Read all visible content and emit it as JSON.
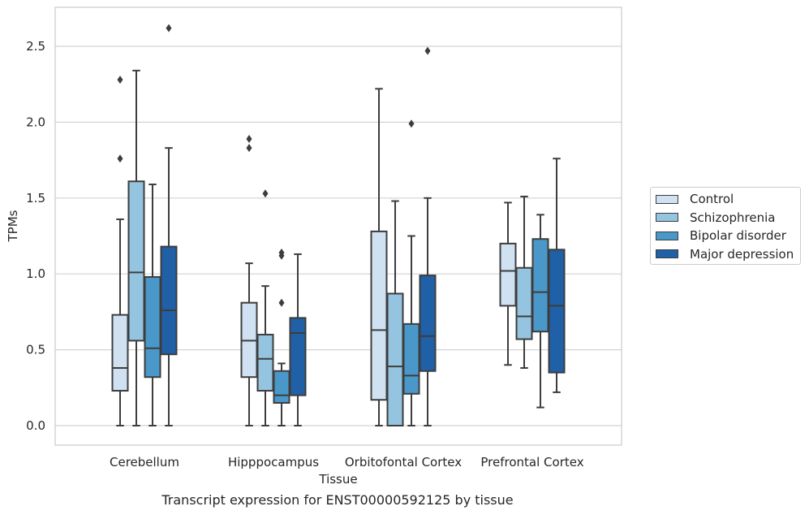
{
  "chart_data": {
    "type": "box",
    "xlabel": "Tissue",
    "ylabel": "TPMs",
    "ylim": [
      -0.13,
      2.75
    ],
    "yticks": [
      "0.0",
      "0.5",
      "1.0",
      "1.5",
      "2.0",
      "2.5"
    ],
    "yticks_values": [
      0,
      0.5,
      1.0,
      1.5,
      2.0,
      2.5
    ],
    "grid": "horizontal",
    "legend_position": "right",
    "categories": [
      "Cerebellum",
      "Hipppocampus",
      "Orbitofontal Cortex",
      "Prefrontal Cortex"
    ],
    "series": [
      {
        "name": "Control",
        "color": "#d0e1f2",
        "boxes": [
          {
            "whisker_low": 0.0,
            "q1": 0.23,
            "median": 0.38,
            "q3": 0.73,
            "whisker_high": 1.36,
            "outliers": [
              1.76,
              2.28
            ]
          },
          {
            "whisker_low": 0.0,
            "q1": 0.32,
            "median": 0.56,
            "q3": 0.81,
            "whisker_high": 1.07,
            "outliers": [
              1.83,
              1.89
            ]
          },
          {
            "whisker_low": 0.0,
            "q1": 0.17,
            "median": 0.63,
            "q3": 1.28,
            "whisker_high": 2.22,
            "outliers": []
          },
          {
            "whisker_low": 0.4,
            "q1": 0.79,
            "median": 1.02,
            "q3": 1.2,
            "whisker_high": 1.47,
            "outliers": []
          }
        ]
      },
      {
        "name": "Schizophrenia",
        "color": "#94c4df",
        "boxes": [
          {
            "whisker_low": 0.0,
            "q1": 0.56,
            "median": 1.01,
            "q3": 1.61,
            "whisker_high": 2.34,
            "outliers": []
          },
          {
            "whisker_low": 0.0,
            "q1": 0.23,
            "median": 0.44,
            "q3": 0.6,
            "whisker_high": 0.92,
            "outliers": [
              1.53
            ]
          },
          {
            "whisker_low": 0.0,
            "q1": 0.0,
            "median": 0.39,
            "q3": 0.87,
            "whisker_high": 1.48,
            "outliers": []
          },
          {
            "whisker_low": 0.38,
            "q1": 0.57,
            "median": 0.72,
            "q3": 1.04,
            "whisker_high": 1.51,
            "outliers": []
          }
        ]
      },
      {
        "name": "Bipolar disorder",
        "color": "#4a98c9",
        "boxes": [
          {
            "whisker_low": 0.0,
            "q1": 0.32,
            "median": 0.51,
            "q3": 0.98,
            "whisker_high": 1.59,
            "outliers": []
          },
          {
            "whisker_low": 0.0,
            "q1": 0.15,
            "median": 0.2,
            "q3": 0.36,
            "whisker_high": 0.41,
            "outliers": [
              0.81,
              1.12,
              1.14
            ]
          },
          {
            "whisker_low": 0.0,
            "q1": 0.21,
            "median": 0.33,
            "q3": 0.67,
            "whisker_high": 1.25,
            "outliers": [
              1.99
            ]
          },
          {
            "whisker_low": 0.12,
            "q1": 0.62,
            "median": 0.88,
            "q3": 1.23,
            "whisker_high": 1.39,
            "outliers": []
          }
        ]
      },
      {
        "name": "Major depression",
        "color": "#2060a7",
        "boxes": [
          {
            "whisker_low": 0.0,
            "q1": 0.47,
            "median": 0.76,
            "q3": 1.18,
            "whisker_high": 1.83,
            "outliers": [
              2.62
            ]
          },
          {
            "whisker_low": 0.0,
            "q1": 0.2,
            "median": 0.61,
            "q3": 0.71,
            "whisker_high": 1.13,
            "outliers": []
          },
          {
            "whisker_low": 0.0,
            "q1": 0.36,
            "median": 0.59,
            "q3": 0.99,
            "whisker_high": 1.5,
            "outliers": [
              2.47
            ]
          },
          {
            "whisker_low": 0.22,
            "q1": 0.35,
            "median": 0.79,
            "q3": 1.16,
            "whisker_high": 1.76,
            "outliers": []
          }
        ]
      }
    ]
  },
  "caption": "Transcript expression for ENST00000592125 by tissue"
}
